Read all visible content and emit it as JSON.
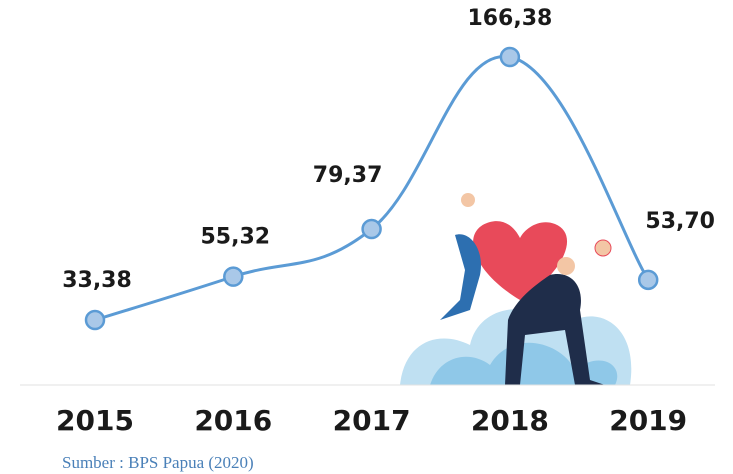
{
  "chart_data": {
    "type": "line",
    "categories": [
      "2015",
      "2016",
      "2017",
      "2018",
      "2019"
    ],
    "values": [
      33.38,
      55.32,
      79.37,
      166.38,
      53.7
    ],
    "value_labels": [
      "33,38",
      "55,32",
      "79,37",
      "166,38",
      "53,70"
    ],
    "color": "#5b9bd5",
    "source": "Sumber : BPS Papua (2020)"
  }
}
